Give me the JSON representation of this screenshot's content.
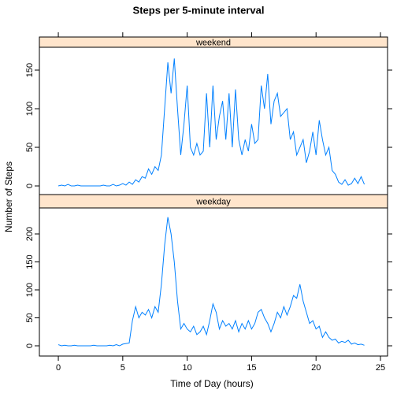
{
  "chart_data": {
    "type": "line",
    "title": "Steps per 5-minute interval",
    "xlabel": "Time of Day (hours)",
    "ylabel": "Number of Steps",
    "xlim": [
      -1.47,
      25.55
    ],
    "xticks": [
      0,
      5,
      10,
      15,
      20,
      25
    ],
    "x": [
      0,
      0.25,
      0.5,
      0.75,
      1,
      1.25,
      1.5,
      1.75,
      2,
      2.25,
      2.5,
      2.75,
      3,
      3.25,
      3.5,
      3.75,
      4,
      4.25,
      4.5,
      4.75,
      5,
      5.25,
      5.5,
      5.75,
      6,
      6.25,
      6.5,
      6.75,
      7,
      7.25,
      7.5,
      7.75,
      8,
      8.25,
      8.5,
      8.75,
      9,
      9.25,
      9.5,
      9.75,
      10,
      10.25,
      10.5,
      10.75,
      11,
      11.25,
      11.5,
      11.75,
      12,
      12.25,
      12.5,
      12.75,
      13,
      13.25,
      13.5,
      13.75,
      14,
      14.25,
      14.5,
      14.75,
      15,
      15.25,
      15.5,
      15.75,
      16,
      16.25,
      16.5,
      16.75,
      17,
      17.25,
      17.5,
      17.75,
      18,
      18.25,
      18.5,
      18.75,
      19,
      19.25,
      19.5,
      19.75,
      20,
      20.25,
      20.5,
      20.75,
      21,
      21.25,
      21.5,
      21.75,
      22,
      22.25,
      22.5,
      22.75,
      23,
      23.25,
      23.5,
      23.75
    ],
    "panels": [
      {
        "name": "weekend",
        "color": "#0080ff",
        "ylim": [
          -11.2,
          179.6
        ],
        "yticks": [
          0,
          50,
          100,
          150
        ],
        "values": [
          0,
          1,
          0,
          2,
          0,
          0,
          1,
          0,
          0,
          0,
          0,
          0,
          0,
          0,
          1,
          0,
          0,
          2,
          0,
          1,
          3,
          1,
          5,
          2,
          8,
          5,
          12,
          10,
          22,
          15,
          25,
          20,
          40,
          100,
          160,
          120,
          165,
          100,
          40,
          80,
          130,
          50,
          40,
          55,
          40,
          45,
          120,
          50,
          130,
          60,
          90,
          110,
          60,
          120,
          50,
          125,
          60,
          40,
          60,
          45,
          80,
          55,
          60,
          130,
          100,
          145,
          80,
          110,
          120,
          90,
          95,
          100,
          60,
          70,
          40,
          50,
          60,
          30,
          45,
          70,
          40,
          85,
          60,
          40,
          50,
          20,
          15,
          5,
          2,
          8,
          1,
          3,
          10,
          3,
          12,
          2
        ]
      },
      {
        "name": "weekday",
        "color": "#0080ff",
        "ylim": [
          -18.3,
          246.5
        ],
        "yticks": [
          0,
          50,
          100,
          150,
          200
        ],
        "values": [
          2,
          0,
          1,
          0,
          0,
          1,
          0,
          0,
          0,
          0,
          0,
          1,
          0,
          0,
          0,
          0,
          1,
          0,
          2,
          0,
          3,
          4,
          5,
          45,
          70,
          50,
          60,
          55,
          65,
          50,
          70,
          60,
          110,
          180,
          230,
          200,
          150,
          80,
          30,
          40,
          30,
          25,
          35,
          20,
          25,
          35,
          20,
          45,
          75,
          60,
          30,
          45,
          35,
          40,
          30,
          45,
          25,
          40,
          30,
          45,
          30,
          40,
          60,
          65,
          50,
          40,
          25,
          40,
          60,
          50,
          70,
          55,
          70,
          90,
          85,
          110,
          80,
          60,
          40,
          45,
          30,
          35,
          15,
          25,
          15,
          10,
          12,
          5,
          8,
          6,
          10,
          3,
          5,
          2,
          3,
          1
        ]
      }
    ]
  }
}
